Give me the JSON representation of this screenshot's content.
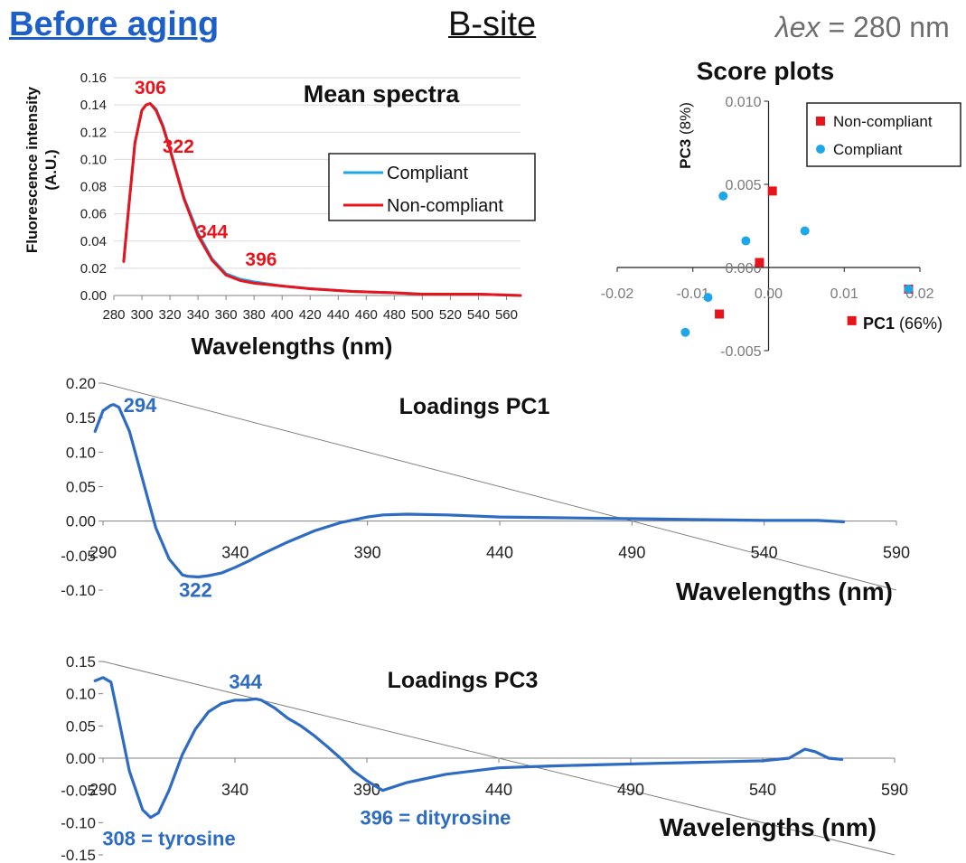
{
  "header": {
    "left": "Before aging",
    "center": "B-site",
    "right_symbol": "λex",
    "right_value": "= 280 nm"
  },
  "colors": {
    "compliant": "#1ea7e8",
    "non_compliant": "#e8141c",
    "loading": "#2e6bc2",
    "annotation_blue": "#2e6bc2",
    "annotation_red": "#e8141c",
    "grid": "#d9d9d9",
    "axis": "#808080"
  },
  "chart_data": [
    {
      "id": "mean",
      "type": "line",
      "title": "Mean spectra",
      "xlabel": "Wavelengths (nm)",
      "ylabel": "Fluorescence intensity (A.U.)",
      "xlim": [
        280,
        570
      ],
      "ylim": [
        0,
        0.16
      ],
      "xticks": [
        280,
        300,
        320,
        340,
        360,
        380,
        400,
        420,
        440,
        460,
        480,
        500,
        520,
        540,
        560
      ],
      "yticks": [
        0,
        0.02,
        0.04,
        0.06,
        0.08,
        0.1,
        0.12,
        0.14,
        0.16
      ],
      "ytick_labels": [
        "0.00",
        "0.02",
        "0.04",
        "0.06",
        "0.08",
        "0.10",
        "0.12",
        "0.14",
        "0.16"
      ],
      "grid": true,
      "legend": "inside right",
      "series": [
        {
          "name": "Compliant",
          "color": "#1ea7e8",
          "x": [
            287,
            290,
            295,
            300,
            303,
            306,
            310,
            315,
            320,
            325,
            330,
            340,
            350,
            360,
            370,
            380,
            400,
            420,
            450,
            480,
            500,
            520,
            540,
            570
          ],
          "y": [
            0.025,
            0.058,
            0.112,
            0.136,
            0.14,
            0.141,
            0.137,
            0.125,
            0.108,
            0.09,
            0.072,
            0.046,
            0.027,
            0.016,
            0.012,
            0.01,
            0.007,
            0.005,
            0.003,
            0.002,
            0.001,
            0.001,
            0.001,
            0.0
          ]
        },
        {
          "name": "Non-compliant",
          "color": "#e8141c",
          "x": [
            287,
            290,
            295,
            300,
            303,
            306,
            310,
            315,
            320,
            325,
            330,
            340,
            350,
            360,
            370,
            380,
            400,
            420,
            450,
            480,
            500,
            520,
            540,
            570
          ],
          "y": [
            0.025,
            0.058,
            0.112,
            0.136,
            0.14,
            0.141,
            0.136,
            0.124,
            0.107,
            0.089,
            0.071,
            0.044,
            0.026,
            0.015,
            0.011,
            0.009,
            0.007,
            0.005,
            0.003,
            0.002,
            0.001,
            0.001,
            0.001,
            0.0
          ]
        }
      ],
      "annotations": [
        {
          "text": "306",
          "x": 306,
          "y": 0.148
        },
        {
          "text": "322",
          "x": 326,
          "y": 0.105
        },
        {
          "text": "344",
          "x": 350,
          "y": 0.042
        },
        {
          "text": "396",
          "x": 385,
          "y": 0.022
        }
      ]
    },
    {
      "id": "scores",
      "type": "scatter",
      "title": "Score plots",
      "xlabel_bold": "PC1",
      "xlabel_rest": " (66%)",
      "ylabel_bold": "PC3",
      "ylabel_rest": " (8%)",
      "xlim": [
        -0.02,
        0.02
      ],
      "ylim": [
        -0.005,
        0.01
      ],
      "xticks": [
        -0.02,
        -0.01,
        0.0,
        0.01,
        0.02
      ],
      "xtick_labels": [
        "-0.02",
        "-0.01",
        "0.00",
        "0.01",
        "0.02"
      ],
      "yticks": [
        -0.005,
        0.0,
        0.005,
        0.01
      ],
      "ytick_labels": [
        "-0.005",
        "0.000",
        "0.005",
        "0.010"
      ],
      "grid": false,
      "legend": "top-right",
      "series": [
        {
          "name": "Non-compliant",
          "marker": "square",
          "color": "#e8141c",
          "points": [
            [
              0.0005,
              0.0046
            ],
            [
              -0.0012,
              0.0003
            ],
            [
              -0.0065,
              -0.0028
            ],
            [
              0.011,
              -0.0032
            ],
            [
              0.0185,
              -0.0013
            ]
          ]
        },
        {
          "name": "Compliant",
          "marker": "circle",
          "color": "#1ea7e8",
          "points": [
            [
              -0.006,
              0.0043
            ],
            [
              -0.003,
              0.0016
            ],
            [
              0.0048,
              0.0022
            ],
            [
              -0.008,
              -0.0018
            ],
            [
              -0.011,
              -0.0039
            ],
            [
              0.0185,
              -0.0013
            ]
          ]
        }
      ]
    },
    {
      "id": "pc1",
      "type": "line",
      "title": "Loadings PC1",
      "xlabel": "Wavelengths (nm)",
      "xlim": [
        290,
        590
      ],
      "ylim": [
        -0.1,
        0.2
      ],
      "xticks": [
        290,
        340,
        390,
        440,
        490,
        540,
        590
      ],
      "yticks": [
        -0.1,
        -0.05,
        0,
        0.05,
        0.1,
        0.15,
        0.2
      ],
      "ytick_labels": [
        "-0.10",
        "-0.05",
        "0.00",
        "0.05",
        "0.10",
        "0.15",
        "0.20"
      ],
      "grid": false,
      "series": [
        {
          "color": "#2e6bc2",
          "x": [
            287,
            290,
            293,
            294,
            296,
            300,
            305,
            310,
            315,
            320,
            322,
            326,
            330,
            335,
            340,
            345,
            350,
            360,
            370,
            380,
            390,
            396,
            405,
            420,
            440,
            460,
            480,
            500,
            520,
            540,
            560,
            570
          ],
          "y": [
            0.13,
            0.16,
            0.168,
            0.169,
            0.165,
            0.13,
            0.06,
            -0.01,
            -0.055,
            -0.078,
            -0.08,
            -0.081,
            -0.079,
            -0.075,
            -0.067,
            -0.058,
            -0.048,
            -0.03,
            -0.014,
            -0.002,
            0.006,
            0.009,
            0.01,
            0.009,
            0.006,
            0.005,
            0.004,
            0.003,
            0.002,
            0.001,
            0.001,
            -0.001
          ]
        }
      ],
      "annotations": [
        {
          "text": "294",
          "x": 304,
          "y": 0.158
        },
        {
          "text": "322",
          "x": 325,
          "y": -0.11
        }
      ]
    },
    {
      "id": "pc3",
      "type": "line",
      "title": "Loadings PC3",
      "xlabel": "Wavelengths (nm)",
      "xlim": [
        290,
        590
      ],
      "ylim": [
        -0.15,
        0.15
      ],
      "xticks": [
        290,
        340,
        390,
        440,
        490,
        540,
        590
      ],
      "yticks": [
        -0.15,
        -0.1,
        -0.05,
        0,
        0.05,
        0.1,
        0.15
      ],
      "ytick_labels": [
        "-0.15",
        "-0.10",
        "-0.05",
        "0.00",
        "0.05",
        "0.10",
        "0.15"
      ],
      "grid": false,
      "series": [
        {
          "color": "#2e6bc2",
          "x": [
            287,
            290,
            293,
            296,
            300,
            305,
            308,
            311,
            315,
            320,
            325,
            330,
            335,
            340,
            344,
            348,
            350,
            355,
            360,
            365,
            370,
            375,
            380,
            385,
            390,
            396,
            405,
            420,
            440,
            460,
            480,
            500,
            520,
            540,
            550,
            556,
            560,
            565,
            570
          ],
          "y": [
            0.12,
            0.125,
            0.118,
            0.06,
            -0.02,
            -0.08,
            -0.092,
            -0.085,
            -0.05,
            0.005,
            0.045,
            0.072,
            0.085,
            0.09,
            0.09,
            0.092,
            0.09,
            0.078,
            0.062,
            0.05,
            0.035,
            0.018,
            0.0,
            -0.02,
            -0.035,
            -0.05,
            -0.038,
            -0.025,
            -0.015,
            -0.012,
            -0.01,
            -0.008,
            -0.006,
            -0.004,
            0.0,
            0.014,
            0.01,
            0.0,
            -0.002
          ]
        }
      ],
      "annotations": [
        {
          "text": "344",
          "x": 344,
          "y": 0.108
        },
        {
          "text": "308 = tyrosine",
          "x": 315,
          "y": -0.135
        },
        {
          "text": "396 = dityrosine",
          "x": 416,
          "y": -0.103
        }
      ]
    }
  ]
}
